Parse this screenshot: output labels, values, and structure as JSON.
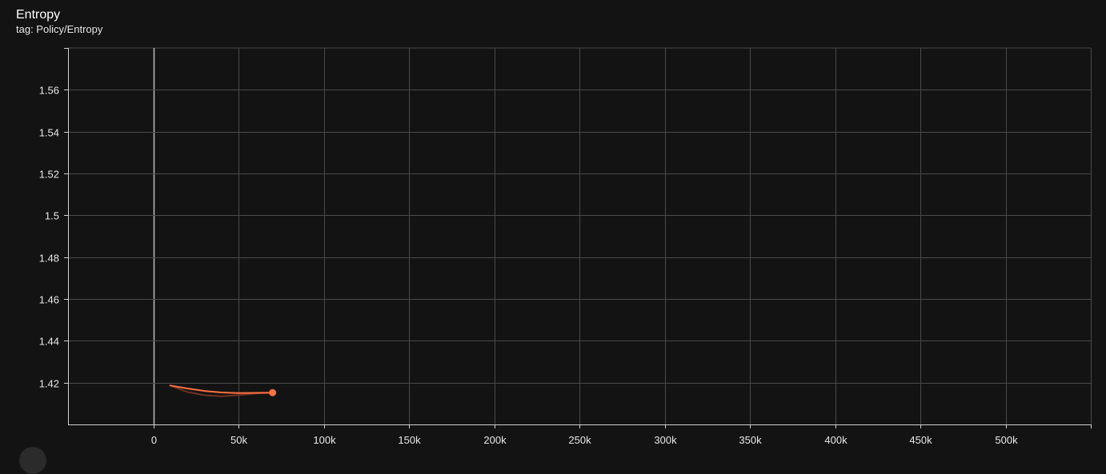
{
  "card": {
    "title": "Entropy",
    "tag": "tag: Policy/Entropy"
  },
  "colors": {
    "background": "#131313",
    "grid": "#4a4a4a",
    "zero_line": "#bdbdbd",
    "axis": "#cfcfcf",
    "series": "#ff7043",
    "series_raw": "#6e3322"
  },
  "chart_data": {
    "type": "line",
    "title": "Entropy",
    "xlabel": "",
    "ylabel": "",
    "xlim": [
      -50000,
      550000
    ],
    "ylim": [
      1.4,
      1.58
    ],
    "x_ticks": [
      0,
      50000,
      100000,
      150000,
      200000,
      250000,
      300000,
      350000,
      400000,
      450000,
      500000
    ],
    "x_tick_labels": [
      "0",
      "50k",
      "100k",
      "150k",
      "200k",
      "250k",
      "300k",
      "350k",
      "400k",
      "450k",
      "500k"
    ],
    "y_ticks": [
      1.42,
      1.44,
      1.46,
      1.48,
      1.5,
      1.52,
      1.54,
      1.56
    ],
    "y_tick_labels": [
      "1.42",
      "1.44",
      "1.46",
      "1.48",
      "1.5",
      "1.52",
      "1.54",
      "1.56"
    ],
    "grid": true,
    "legend": "none",
    "series": [
      {
        "smoothed": true,
        "x": [
          10000,
          20000,
          30000,
          40000,
          50000,
          60000,
          70000
        ],
        "values": [
          1.4186,
          1.4172,
          1.416,
          1.4153,
          1.415,
          1.4151,
          1.4152
        ]
      },
      {
        "smoothed": false,
        "x": [
          10000,
          20000,
          30000,
          40000,
          50000,
          60000,
          70000
        ],
        "values": [
          1.4186,
          1.4155,
          1.414,
          1.4135,
          1.414,
          1.4148,
          1.4152
        ]
      }
    ]
  }
}
